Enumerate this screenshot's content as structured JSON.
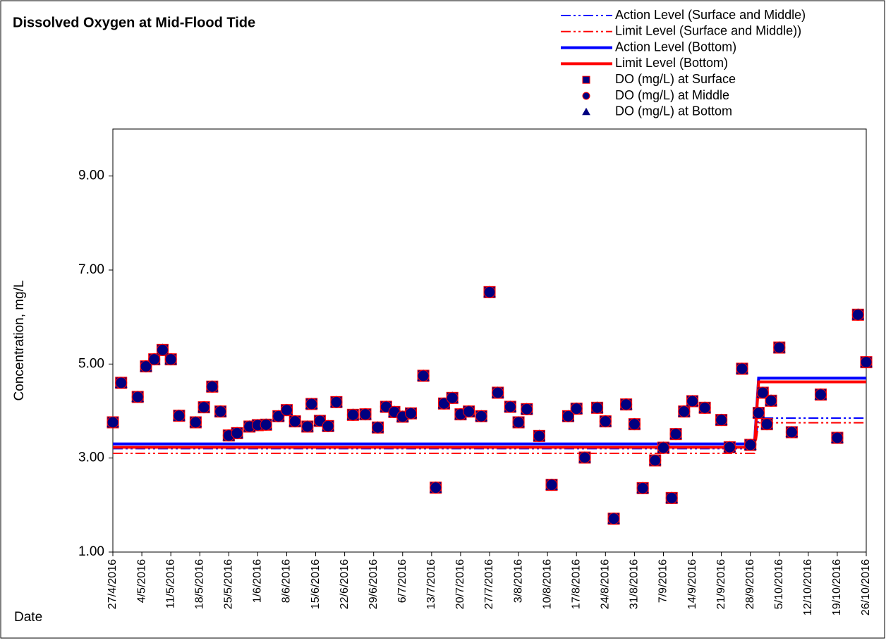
{
  "chart_data": {
    "type": "scatter",
    "title": "Dissolved Oxygen at Mid-Flood Tide",
    "y_label": "Concentration, mg/L",
    "x_label": "Date",
    "ylim": [
      1,
      10
    ],
    "yticks": [
      {
        "value": 1,
        "label": "1.00"
      },
      {
        "value": 3,
        "label": "3.00"
      },
      {
        "value": 5,
        "label": "5.00"
      },
      {
        "value": 7,
        "label": "7.00"
      },
      {
        "value": 9,
        "label": "9.00"
      }
    ],
    "xlim": [
      "27/4/2016",
      "26/10/2016"
    ],
    "xticks": [
      "27/4/2016",
      "4/5/2016",
      "11/5/2016",
      "18/5/2016",
      "25/5/2016",
      "1/6/2016",
      "8/6/2016",
      "15/6/2016",
      "22/6/2016",
      "29/6/2016",
      "6/7/2016",
      "13/7/2016",
      "20/7/2016",
      "27/7/2016",
      "3/8/2016",
      "10/8/2016",
      "17/8/2016",
      "24/8/2016",
      "31/8/2016",
      "7/9/2016",
      "14/9/2016",
      "21/9/2016",
      "28/9/2016",
      "5/10/2016",
      "12/10/2016",
      "19/10/2016",
      "26/10/2016"
    ],
    "x": [
      "27/4/2016",
      "29/4/2016",
      "3/5/2016",
      "5/5/2016",
      "7/5/2016",
      "9/5/2016",
      "11/5/2016",
      "13/5/2016",
      "17/5/2016",
      "19/5/2016",
      "21/5/2016",
      "23/5/2016",
      "25/5/2016",
      "27/5/2016",
      "30/5/2016",
      "1/6/2016",
      "3/6/2016",
      "6/6/2016",
      "8/6/2016",
      "10/6/2016",
      "13/6/2016",
      "14/6/2016",
      "16/6/2016",
      "18/6/2016",
      "20/6/2016",
      "24/6/2016",
      "27/6/2016",
      "30/6/2016",
      "2/7/2016",
      "4/7/2016",
      "6/7/2016",
      "8/7/2016",
      "11/7/2016",
      "14/7/2016",
      "16/7/2016",
      "18/7/2016",
      "20/7/2016",
      "22/7/2016",
      "25/7/2016",
      "27/7/2016",
      "29/7/2016",
      "1/8/2016",
      "3/8/2016",
      "5/8/2016",
      "8/8/2016",
      "11/8/2016",
      "15/8/2016",
      "17/8/2016",
      "19/8/2016",
      "22/8/2016",
      "24/8/2016",
      "26/8/2016",
      "29/8/2016",
      "31/8/2016",
      "2/9/2016",
      "5/9/2016",
      "7/9/2016",
      "9/9/2016",
      "10/9/2016",
      "12/9/2016",
      "14/9/2016",
      "17/9/2016",
      "21/9/2016",
      "23/9/2016",
      "26/9/2016",
      "28/9/2016",
      "30/9/2016",
      "1/10/2016",
      "2/10/2016",
      "3/10/2016",
      "5/10/2016",
      "8/10/2016",
      "15/10/2016",
      "19/10/2016",
      "24/10/2016",
      "26/10/2016"
    ],
    "limit_x": [
      "27/4/2016",
      "29/9/2016",
      "30/9/2016",
      "26/10/2016"
    ],
    "series": [
      {
        "name": "Action Level (Surface and Middle)",
        "color": "#0000ff",
        "style": "dash-dot",
        "values": [
          3.2,
          3.2,
          3.85,
          3.85
        ]
      },
      {
        "name": "Limit Level (Surface and Middle))",
        "color": "#ff0000",
        "style": "dash-dot",
        "values": [
          3.1,
          3.1,
          3.75,
          3.75
        ]
      },
      {
        "name": "Action Level (Bottom)",
        "color": "#0000ff",
        "style": "thick",
        "values": [
          3.3,
          3.3,
          4.7,
          4.7
        ]
      },
      {
        "name": "Limit Level (Bottom)",
        "color": "#ff0000",
        "style": "thick",
        "values": [
          3.23,
          3.23,
          4.62,
          4.62
        ]
      },
      {
        "name": "DO (mg/L) at Surface",
        "color": "#000080",
        "marker": "square",
        "values": [
          3.76,
          4.6,
          4.3,
          4.95,
          5.1,
          5.3,
          5.1,
          3.9,
          3.76,
          4.08,
          4.52,
          3.99,
          3.48,
          3.53,
          3.67,
          3.7,
          3.71,
          3.89,
          4.02,
          3.78,
          3.67,
          4.15,
          3.79,
          3.68,
          4.19,
          3.92,
          3.93,
          3.65,
          4.09,
          3.98,
          3.88,
          3.95,
          4.75,
          2.37,
          4.16,
          4.28,
          3.93,
          3.99,
          3.89,
          6.53,
          4.39,
          4.09,
          3.76,
          4.04,
          3.47,
          2.43,
          3.89,
          4.05,
          3.01,
          4.07,
          3.78,
          1.71,
          4.14,
          3.72,
          2.36,
          2.95,
          3.22,
          2.15,
          3.51,
          3.99,
          4.21,
          4.07,
          3.81,
          3.23,
          4.9,
          3.28,
          3.96,
          4.39,
          3.72,
          4.22,
          5.35,
          3.55,
          4.35,
          3.43,
          6.05,
          5.04
        ]
      },
      {
        "name": "DO (mg/L) at Bottom",
        "color": "#000080",
        "marker": "triangle",
        "values": [
          3.76,
          4.6,
          4.3,
          4.95,
          5.1,
          5.3,
          5.1,
          3.9,
          3.76,
          4.08,
          4.52,
          3.99,
          3.48,
          3.53,
          3.67,
          3.7,
          3.71,
          3.89,
          4.02,
          3.78,
          3.67,
          4.15,
          3.79,
          3.68,
          4.19,
          3.92,
          3.93,
          3.65,
          4.09,
          3.98,
          3.88,
          3.95,
          4.75,
          2.37,
          4.16,
          4.28,
          3.93,
          3.99,
          3.89,
          6.53,
          4.39,
          4.09,
          3.76,
          4.04,
          3.47,
          2.43,
          3.89,
          4.05,
          3.01,
          4.07,
          3.78,
          1.71,
          4.14,
          3.72,
          2.36,
          2.95,
          3.22,
          2.15,
          3.51,
          3.99,
          4.21,
          4.07,
          3.81,
          3.23,
          4.9,
          3.28,
          3.96,
          4.39,
          3.72,
          4.22,
          5.35,
          3.55,
          4.35,
          3.43,
          6.05,
          5.04
        ]
      },
      {
        "name": "DO (mg/L) at Middle",
        "color": "#000080",
        "marker": "circle",
        "values": [
          3.76,
          4.6,
          4.3,
          4.95,
          5.1,
          5.3,
          5.1,
          3.9,
          3.76,
          4.08,
          4.52,
          3.99,
          3.48,
          3.53,
          3.67,
          3.7,
          3.71,
          3.89,
          4.02,
          3.78,
          3.67,
          4.15,
          3.79,
          3.68,
          4.19,
          3.92,
          3.93,
          3.65,
          4.09,
          3.98,
          3.88,
          3.95,
          4.75,
          2.37,
          4.16,
          4.28,
          3.93,
          3.99,
          3.89,
          6.53,
          4.39,
          4.09,
          3.76,
          4.04,
          3.47,
          2.43,
          3.89,
          4.05,
          3.01,
          4.07,
          3.78,
          1.71,
          4.14,
          3.72,
          2.36,
          2.95,
          3.22,
          2.15,
          3.51,
          3.99,
          4.21,
          4.07,
          3.81,
          3.23,
          4.9,
          3.28,
          3.96,
          4.39,
          3.72,
          4.22,
          5.35,
          3.55,
          4.35,
          3.43,
          6.05,
          5.04
        ]
      }
    ],
    "legend_order": [
      0,
      1,
      2,
      3,
      4,
      6,
      5
    ]
  }
}
